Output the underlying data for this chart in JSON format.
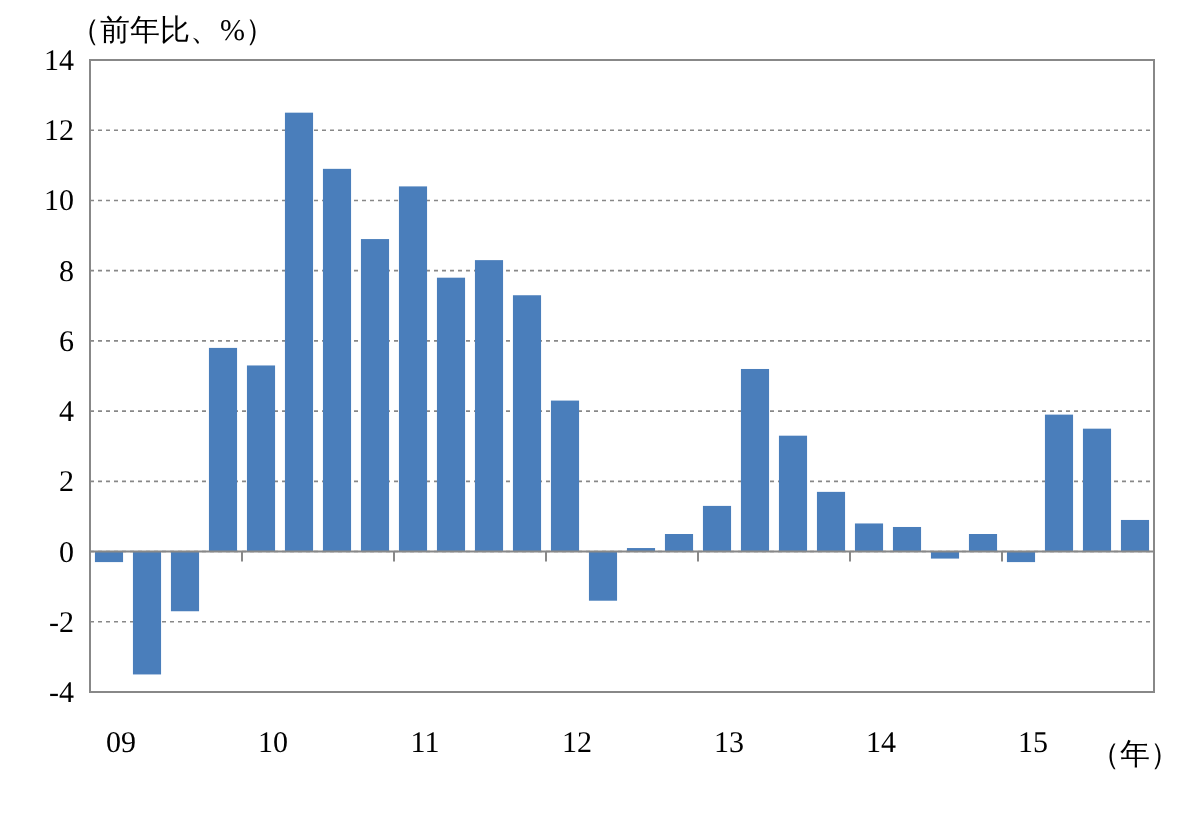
{
  "chart_data": {
    "type": "bar",
    "ylabel": "（前年比、%）",
    "xlabel": "（年）",
    "categories": [
      "09",
      null,
      null,
      null,
      "10",
      null,
      null,
      null,
      "11",
      null,
      null,
      null,
      "12",
      null,
      null,
      null,
      "13",
      null,
      null,
      null,
      "14",
      null,
      null,
      null,
      "15",
      null,
      null,
      null
    ],
    "values": [
      -0.3,
      -3.5,
      -1.7,
      5.8,
      5.3,
      12.5,
      10.9,
      8.9,
      10.4,
      7.8,
      8.3,
      7.3,
      4.3,
      -1.4,
      0.1,
      0.5,
      1.3,
      5.2,
      3.3,
      1.7,
      0.8,
      0.7,
      -0.2,
      0.5,
      -0.3,
      3.9,
      3.5,
      0.9
    ],
    "color": "#4a7ebb",
    "ylim": [
      -4,
      14
    ],
    "yticks": [
      -4,
      -2,
      0,
      2,
      4,
      6,
      8,
      10,
      12,
      14
    ],
    "grid": "y"
  }
}
